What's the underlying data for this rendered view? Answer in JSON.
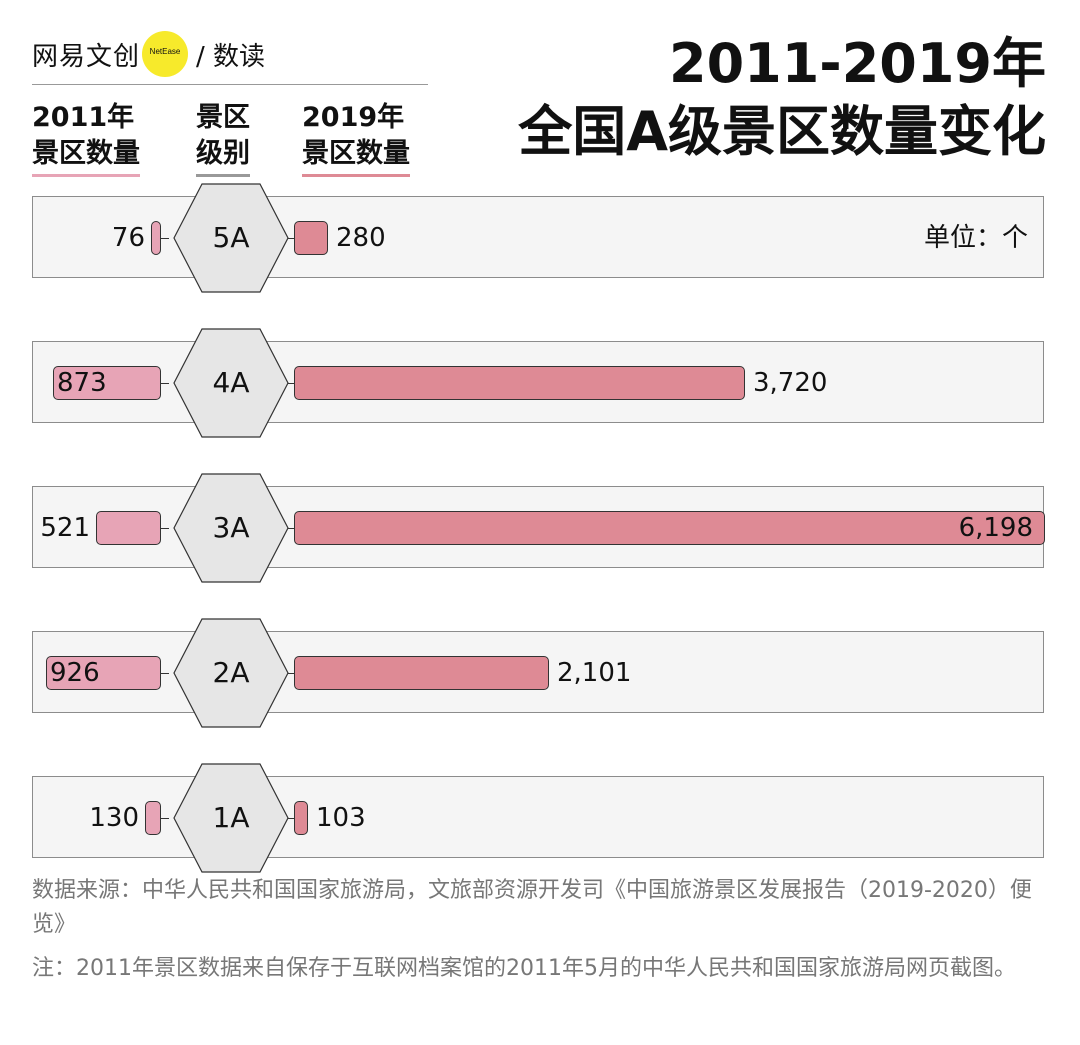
{
  "brand": {
    "name": "网易文创",
    "badge": "NetEase",
    "sub": "/ 数读"
  },
  "title": {
    "line1": "2011-2019年",
    "line2": "全国A级景区数量变化"
  },
  "columns": {
    "left": {
      "line1": "2011年",
      "line2": "景区数量"
    },
    "center": {
      "line1": "景区",
      "line2": "级别"
    },
    "right": {
      "line1": "2019年",
      "line2": "景区数量"
    }
  },
  "unit_label": "单位：个",
  "colors": {
    "left_bar": "#e7a4b6",
    "right_bar": "#de8a95",
    "left_underline": "#e7a4b6",
    "center_underline": "#999999",
    "right_underline": "#de8a95",
    "hexagon": "#e6e6e6"
  },
  "chart_data": {
    "type": "bar",
    "categories": [
      "5A",
      "4A",
      "3A",
      "2A",
      "1A"
    ],
    "series": [
      {
        "name": "2011年景区数量",
        "values": [
          76,
          873,
          521,
          926,
          130
        ],
        "labels": [
          "76",
          "873",
          "521",
          "926",
          "130"
        ]
      },
      {
        "name": "2019年景区数量",
        "values": [
          280,
          3720,
          6198,
          2101,
          103
        ],
        "labels": [
          "280",
          "3,720",
          "6,198",
          "2,101",
          "103"
        ]
      }
    ],
    "title": "2011-2019年 全国A级景区数量变化"
  },
  "notes": {
    "source": "数据来源：中华人民共和国国家旅游局，文旅部资源开发司《中国旅游景区发展报告（2019-2020）便览》",
    "note": "注：2011年景区数据来自保存于互联网档案馆的2011年5月的中华人民共和国国家旅游局网页截图。"
  }
}
